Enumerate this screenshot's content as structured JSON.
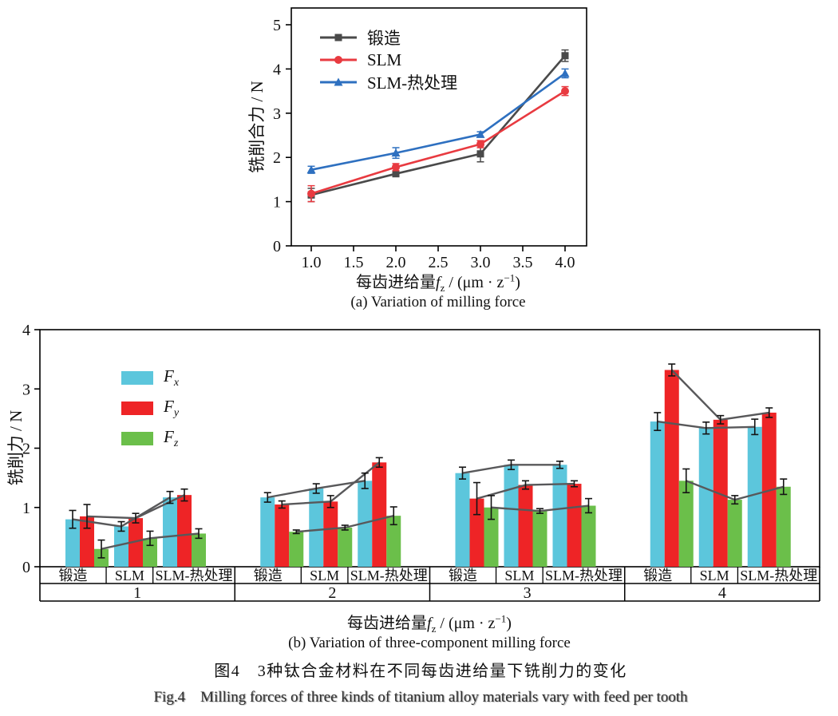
{
  "figure": {
    "caption_zh": "图4　3种钛合金材料在不同每齿进给量下铣削力的变化",
    "caption_en": "Fig.4　Milling forces of three kinds of titanium alloy materials vary with feed per tooth"
  },
  "xlabel_parts": {
    "pre": "每齿进给量",
    "sym": "f",
    "sub": "z",
    "mid": " / (μm · z",
    "sup": "−1",
    "end": ")"
  },
  "chart_data": [
    {
      "type": "line",
      "caption": "(a) Variation of milling force",
      "ylabel": "铣削合力 / N",
      "xlabel": "每齿进给量fz / (μm·z⁻¹)",
      "x": [
        1.0,
        2.0,
        3.0,
        4.0
      ],
      "xticks": [
        "1.0",
        "1.5",
        "2.0",
        "2.5",
        "3.0",
        "3.5",
        "4.0"
      ],
      "yticks": [
        "0",
        "1",
        "2",
        "3",
        "4",
        "5"
      ],
      "ylim": [
        0,
        5.38
      ],
      "xlim": [
        0.76,
        4.26
      ],
      "grid": false,
      "legend_position": "upper-left-inside",
      "series": [
        {
          "name": "锻造",
          "marker": "square",
          "color": "#4a4a4a",
          "values": [
            1.15,
            1.63,
            2.08,
            4.3
          ],
          "errors": [
            0.15,
            0.05,
            0.18,
            0.13
          ]
        },
        {
          "name": "SLM",
          "marker": "circle",
          "color": "#e83a40",
          "values": [
            1.18,
            1.78,
            2.3,
            3.5
          ],
          "errors": [
            0.18,
            0.08,
            0.08,
            0.1
          ]
        },
        {
          "name": "SLM-热处理",
          "marker": "triangle",
          "color": "#2e70c0",
          "values": [
            1.72,
            2.1,
            2.52,
            3.9
          ],
          "errors": [
            0.08,
            0.12,
            0.06,
            0.1
          ]
        }
      ]
    },
    {
      "type": "bar",
      "caption": "(b) Variation of three-component milling force",
      "ylabel": "铣削力 / N",
      "xlabel": "每齿进给量fz / (μm·z⁻¹)",
      "yticks": [
        "0",
        "1",
        "2",
        "3",
        "4"
      ],
      "ylim": [
        0,
        4
      ],
      "feed_levels": [
        "1",
        "2",
        "3",
        "4"
      ],
      "materials": [
        "锻造",
        "SLM",
        "SLM-热处理"
      ],
      "components": [
        {
          "sym": "F",
          "sub": "x",
          "color": "#5cc6dc"
        },
        {
          "sym": "F",
          "sub": "y",
          "color": "#ee2426"
        },
        {
          "sym": "F",
          "sub": "z",
          "color": "#6bbf4a"
        }
      ],
      "values": {
        "Fx": [
          [
            0.8,
            0.68,
            1.17
          ],
          [
            1.17,
            1.32,
            1.45
          ],
          [
            1.58,
            1.72,
            1.72
          ],
          [
            2.45,
            2.34,
            2.36
          ]
        ],
        "Fy": [
          [
            0.85,
            0.82,
            1.21
          ],
          [
            1.05,
            1.1,
            1.76
          ],
          [
            1.15,
            1.38,
            1.4
          ],
          [
            3.32,
            2.48,
            2.6
          ]
        ],
        "Fz": [
          [
            0.3,
            0.48,
            0.56
          ],
          [
            0.59,
            0.66,
            0.86
          ],
          [
            1.0,
            0.94,
            1.03
          ],
          [
            1.45,
            1.13,
            1.35
          ]
        ]
      },
      "errors": {
        "Fx": [
          [
            0.15,
            0.08,
            0.1
          ],
          [
            0.08,
            0.08,
            0.13
          ],
          [
            0.1,
            0.08,
            0.06
          ],
          [
            0.15,
            0.1,
            0.13
          ]
        ],
        "Fy": [
          [
            0.2,
            0.08,
            0.1
          ],
          [
            0.06,
            0.1,
            0.08
          ],
          [
            0.27,
            0.07,
            0.05
          ],
          [
            0.1,
            0.07,
            0.08
          ]
        ],
        "Fz": [
          [
            0.15,
            0.12,
            0.08
          ],
          [
            0.03,
            0.04,
            0.15
          ],
          [
            0.2,
            0.04,
            0.12
          ],
          [
            0.2,
            0.07,
            0.13
          ]
        ]
      },
      "connector_color": "#58585a",
      "error_color": "#141414"
    }
  ]
}
